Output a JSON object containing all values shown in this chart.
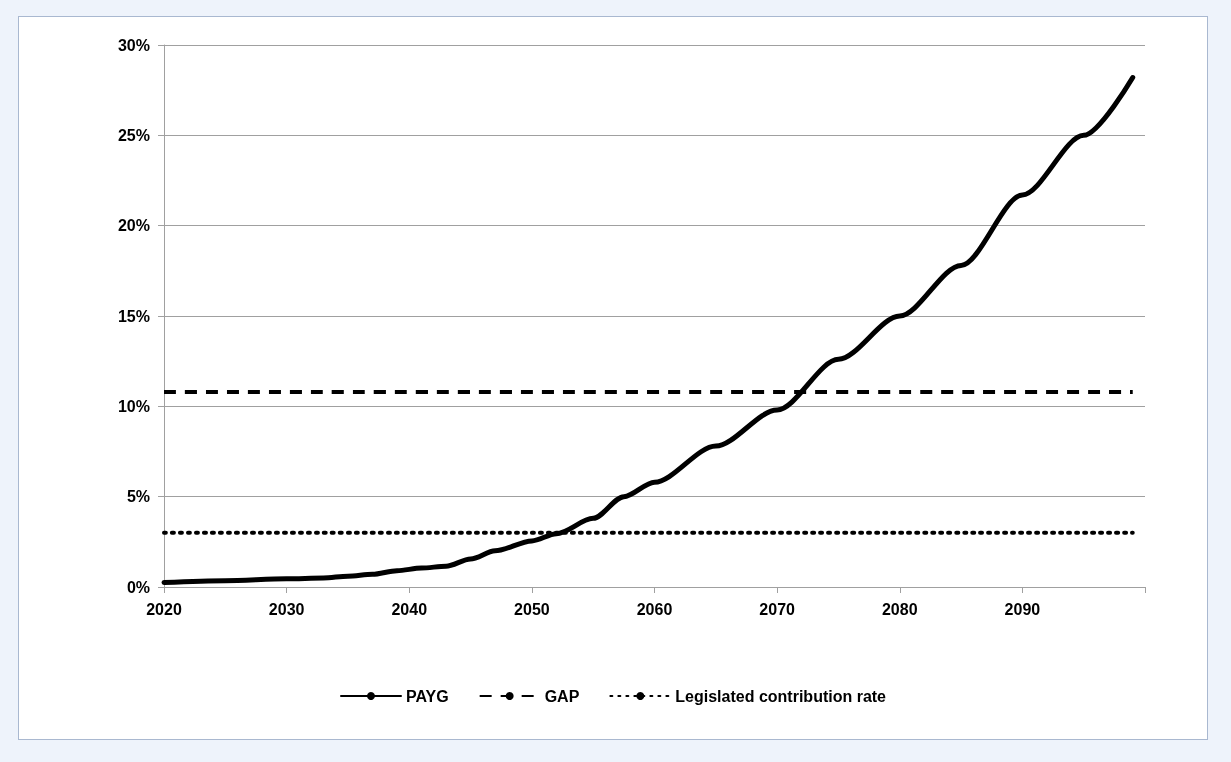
{
  "chart_data": {
    "type": "line",
    "xlim": [
      2020,
      2100
    ],
    "xticks": [
      2020,
      2030,
      2040,
      2050,
      2060,
      2070,
      2080,
      2090,
      {
        "value": 2100,
        "label": null
      }
    ],
    "ylim": [
      0,
      30
    ],
    "yticks": [
      {
        "value": 0,
        "label": "0%"
      },
      {
        "value": 5,
        "label": "5%"
      },
      {
        "value": 10,
        "label": "10%"
      },
      {
        "value": 15,
        "label": "15%"
      },
      {
        "value": 20,
        "label": "20%"
      },
      {
        "value": 25,
        "label": "25%"
      },
      {
        "value": 30,
        "label": "30%"
      }
    ],
    "grid": "y",
    "legend": "bottom",
    "marker": "none",
    "series": [
      {
        "name": "PAYG",
        "color": "#000000",
        "line_style": "solid",
        "x": [
          2020,
          2025,
          2030,
          2033,
          2035,
          2037,
          2039,
          2041,
          2043,
          2045,
          2047,
          2050,
          2052,
          2055,
          2057.5,
          2060,
          2065,
          2070,
          2075,
          2080,
          2085,
          2090,
          2095,
          2099
        ],
        "values": [
          0.25,
          0.35,
          0.45,
          0.5,
          0.6,
          0.7,
          0.9,
          1.05,
          1.15,
          1.55,
          2.0,
          2.55,
          2.95,
          3.8,
          5.0,
          5.8,
          7.8,
          9.8,
          12.6,
          15.0,
          17.8,
          21.7,
          25.0,
          28.2
        ]
      },
      {
        "name": "GAP",
        "color": "#000000",
        "line_style": "dashed",
        "x": [
          2020,
          2099
        ],
        "values": [
          10.8,
          10.8
        ]
      },
      {
        "name": "Legislated contribution rate",
        "color": "#000000",
        "line_style": "dotted",
        "x": [
          2020,
          2099
        ],
        "values": [
          3.0,
          3.0
        ]
      }
    ]
  }
}
